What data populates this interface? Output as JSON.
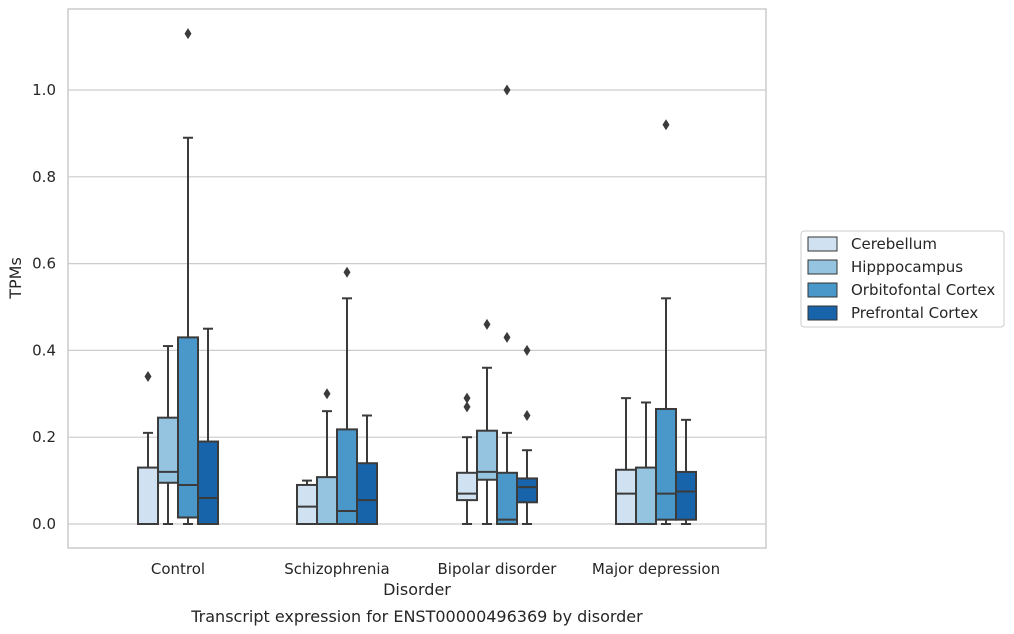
{
  "caption": "Transcript expression for ENST00000496369 by disorder",
  "chart_data": {
    "type": "boxplot",
    "xlabel": "Disorder",
    "ylabel": "TPMs",
    "ylim": [
      -0.055,
      1.19
    ],
    "yticks": [
      0.0,
      0.2,
      0.4,
      0.6,
      0.8,
      1.0
    ],
    "ytick_labels": [
      "0.0",
      "0.2",
      "0.4",
      "0.6",
      "0.8",
      "1.0"
    ],
    "grid": "horizontal",
    "legend_position": "right",
    "categories": [
      "Control",
      "Schizophrenia",
      "Bipolar disorder",
      "Major depression"
    ],
    "series": [
      {
        "name": "Cerebellum",
        "color": "#d0e1f2",
        "boxes": [
          {
            "q1": 0.0,
            "median": 0.0,
            "q3": 0.13,
            "wlo": 0.0,
            "whi": 0.21,
            "outliers": [
              0.34
            ]
          },
          {
            "q1": 0.0,
            "median": 0.04,
            "q3": 0.09,
            "wlo": 0.0,
            "whi": 0.1,
            "outliers": []
          },
          {
            "q1": 0.055,
            "median": 0.07,
            "q3": 0.118,
            "wlo": 0.0,
            "whi": 0.2,
            "outliers": [
              0.27,
              0.29
            ]
          },
          {
            "q1": 0.0,
            "median": 0.07,
            "q3": 0.125,
            "wlo": 0.0,
            "whi": 0.29,
            "outliers": []
          }
        ]
      },
      {
        "name": "Hipppocampus",
        "color": "#94c4df",
        "boxes": [
          {
            "q1": 0.095,
            "median": 0.12,
            "q3": 0.245,
            "wlo": 0.0,
            "whi": 0.41,
            "outliers": []
          },
          {
            "q1": 0.0,
            "median": 0.0,
            "q3": 0.108,
            "wlo": 0.0,
            "whi": 0.26,
            "outliers": [
              0.3
            ]
          },
          {
            "q1": 0.102,
            "median": 0.12,
            "q3": 0.215,
            "wlo": 0.0,
            "whi": 0.36,
            "outliers": [
              0.46
            ]
          },
          {
            "q1": 0.0,
            "median": 0.0,
            "q3": 0.13,
            "wlo": 0.0,
            "whi": 0.28,
            "outliers": []
          }
        ]
      },
      {
        "name": "Orbitofontal Cortex",
        "color": "#4a98c9",
        "boxes": [
          {
            "q1": 0.015,
            "median": 0.09,
            "q3": 0.43,
            "wlo": 0.0,
            "whi": 0.89,
            "outliers": [
              1.13
            ]
          },
          {
            "q1": 0.0,
            "median": 0.03,
            "q3": 0.218,
            "wlo": 0.0,
            "whi": 0.52,
            "outliers": [
              0.58
            ]
          },
          {
            "q1": 0.0,
            "median": 0.01,
            "q3": 0.118,
            "wlo": 0.0,
            "whi": 0.21,
            "outliers": [
              0.43,
              1.0
            ]
          },
          {
            "q1": 0.01,
            "median": 0.07,
            "q3": 0.265,
            "wlo": 0.0,
            "whi": 0.52,
            "outliers": [
              0.92
            ]
          }
        ]
      },
      {
        "name": "Prefrontal Cortex",
        "color": "#1764ab",
        "boxes": [
          {
            "q1": 0.0,
            "median": 0.06,
            "q3": 0.19,
            "wlo": 0.0,
            "whi": 0.45,
            "outliers": []
          },
          {
            "q1": 0.0,
            "median": 0.055,
            "q3": 0.14,
            "wlo": 0.0,
            "whi": 0.25,
            "outliers": []
          },
          {
            "q1": 0.05,
            "median": 0.085,
            "q3": 0.105,
            "wlo": 0.0,
            "whi": 0.17,
            "outliers": [
              0.25,
              0.4
            ]
          },
          {
            "q1": 0.01,
            "median": 0.075,
            "q3": 0.12,
            "wlo": 0.0,
            "whi": 0.24,
            "outliers": []
          }
        ]
      }
    ]
  }
}
